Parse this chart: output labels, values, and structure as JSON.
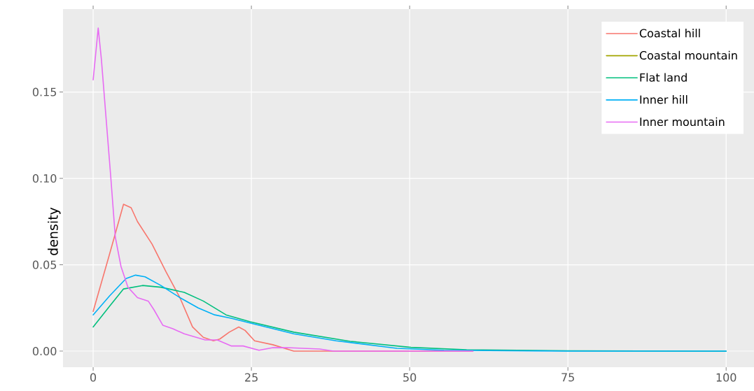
{
  "chart_data": {
    "type": "line",
    "ylabel": "density",
    "xlim": [
      -4.76,
      104.4
    ],
    "ylim": [
      -0.0093,
      0.198
    ],
    "xticks": [
      0,
      25,
      50,
      75,
      100
    ],
    "yticks": [
      {
        "value": 0,
        "label": "0.00"
      },
      {
        "value": 0.05,
        "label": "0.05"
      },
      {
        "value": 0.1,
        "label": "0.10"
      },
      {
        "value": 0.15,
        "label": "0.15"
      }
    ],
    "grid": true,
    "legend": "top right",
    "line_style": "solid",
    "marker": "none",
    "series": [
      {
        "name": "Coastal hill",
        "color": "#f8766d",
        "x": [
          0,
          2.5,
          4.8,
          6,
          7,
          9.3,
          11.5,
          13.7,
          15.7,
          17.4,
          19,
          20,
          21.5,
          23,
          24,
          25.5,
          28.4,
          31.7,
          40,
          60
        ],
        "values": [
          0.023,
          0.055,
          0.085,
          0.083,
          0.075,
          0.062,
          0.046,
          0.031,
          0.014,
          0.008,
          0.006,
          0.007,
          0.011,
          0.014,
          0.012,
          0.006,
          0.0037,
          0,
          0,
          0
        ]
      },
      {
        "name": "Coastal mountain",
        "color": "#a3a500",
        "values": [
          null
        ]
      },
      {
        "name": "Flat land",
        "color": "#00bf7d",
        "x": [
          0,
          2.6,
          4.8,
          7.8,
          10.7,
          14.4,
          17.4,
          21,
          24.8,
          31.7,
          40.6,
          50.2,
          59,
          75,
          100
        ],
        "values": [
          0.014,
          0.026,
          0.036,
          0.038,
          0.037,
          0.034,
          0.029,
          0.021,
          0.017,
          0.011,
          0.0057,
          0.0022,
          0.0008,
          0.0002,
          0
        ]
      },
      {
        "name": "Inner hill",
        "color": "#00b0f6",
        "x": [
          0,
          2.6,
          5.2,
          6.7,
          8.2,
          10.7,
          13.7,
          16.6,
          19.2,
          21.8,
          25.1,
          31.7,
          38.4,
          48,
          55.4,
          75,
          100
        ],
        "values": [
          0.021,
          0.032,
          0.042,
          0.044,
          0.043,
          0.038,
          0.031,
          0.025,
          0.021,
          0.019,
          0.016,
          0.01,
          0.006,
          0.0016,
          0.0005,
          0,
          0
        ]
      },
      {
        "name": "Inner mountain",
        "color": "#e76bf3",
        "x": [
          0,
          0.8,
          1.3,
          2.8,
          3.5,
          4.4,
          5.5,
          7,
          8.7,
          9.6,
          11,
          12.6,
          14.4,
          17.7,
          19.6,
          21.8,
          23.7,
          26.2,
          28.4,
          30.6,
          35.8,
          38,
          60
        ],
        "values": [
          0.157,
          0.187,
          0.169,
          0.1,
          0.066,
          0.049,
          0.037,
          0.031,
          0.029,
          0.024,
          0.015,
          0.013,
          0.01,
          0.0065,
          0.0065,
          0.003,
          0.003,
          0.0005,
          0.002,
          0.002,
          0.0012,
          0,
          0
        ]
      }
    ]
  }
}
